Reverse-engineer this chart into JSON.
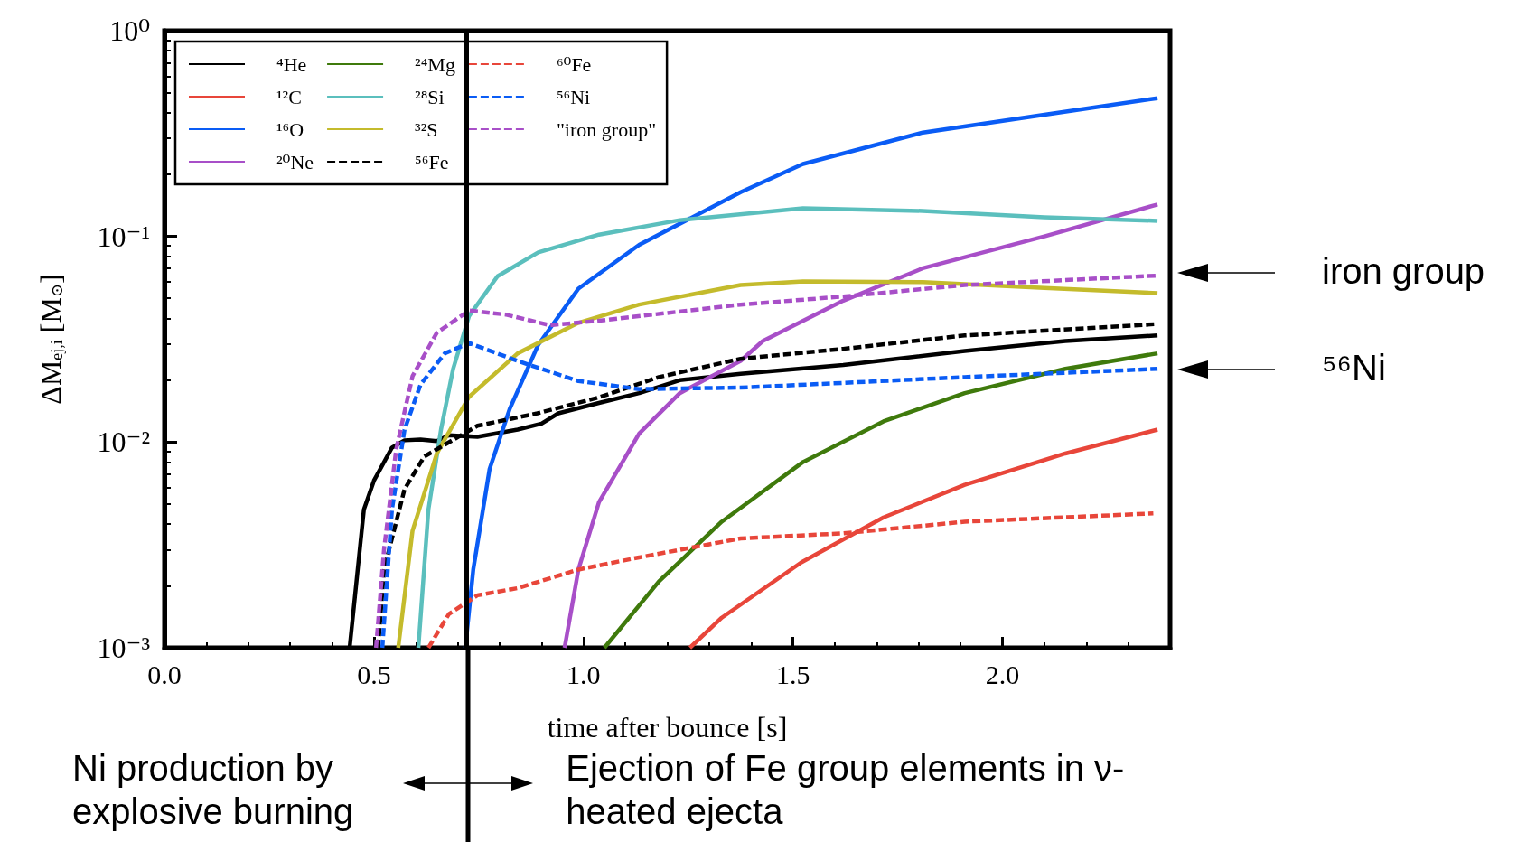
{
  "chart_data": {
    "type": "line",
    "xlabel": "time after bounce [s]",
    "ylabel": "ΔM$_{ej,i}$ [M$_{⊙}$]",
    "log": "y",
    "grid": false,
    "legend": "top left",
    "marker": "none",
    "xlim": [
      0,
      2.4
    ],
    "xticks": [
      {
        "value": 0,
        "label": "0.0"
      },
      {
        "value": 0.5,
        "label": "0.5"
      },
      {
        "value": 1,
        "label": "1.0"
      },
      {
        "value": 1.5,
        "label": "1.5"
      },
      {
        "value": 2,
        "label": "2.0"
      }
    ],
    "ylim": [
      0.001,
      1
    ],
    "yticks": [
      {
        "value": 0.001,
        "label": "10⁻³"
      },
      {
        "value": 0.01,
        "label": "10⁻²"
      },
      {
        "value": 0.1,
        "label": "10⁻¹"
      },
      {
        "value": 1,
        "label": "10⁰"
      }
    ],
    "series": [
      {
        "name": "⁴He",
        "color": "#000000",
        "line_style": "solid",
        "x": [
          0.442,
          0.476,
          0.5,
          0.543,
          0.573,
          0.611,
          0.65,
          0.679,
          0.747,
          0.843,
          0.9,
          0.94,
          1.037,
          1.133,
          1.23,
          1.375,
          1.62,
          1.91,
          2.15,
          2.37
        ],
        "values": [
          0.001,
          0.0047,
          0.0065,
          0.0094,
          0.0102,
          0.0103,
          0.0101,
          0.0108,
          0.0106,
          0.0115,
          0.0123,
          0.0138,
          0.0155,
          0.0173,
          0.02,
          0.0215,
          0.0237,
          0.0277,
          0.031,
          0.033
        ]
      },
      {
        "name": "¹²C",
        "color": "#e8463a",
        "line_style": "solid",
        "x": [
          1.254,
          1.33,
          1.52,
          1.716,
          1.91,
          2.15,
          2.37
        ],
        "values": [
          0.001,
          0.0014,
          0.0026,
          0.0043,
          0.0062,
          0.0088,
          0.0115
        ]
      },
      {
        "name": "¹⁶O",
        "color": "#0a5cf5",
        "line_style": "solid",
        "x": [
          0.718,
          0.737,
          0.776,
          0.824,
          0.892,
          0.988,
          1.133,
          1.375,
          1.524,
          1.81,
          2.1,
          2.37
        ],
        "values": [
          0.001,
          0.0024,
          0.0074,
          0.0145,
          0.0297,
          0.0557,
          0.091,
          0.164,
          0.225,
          0.32,
          0.39,
          0.47
        ]
      },
      {
        "name": "²⁰Ne",
        "color": "#a84fc8",
        "line_style": "solid",
        "x": [
          0.955,
          0.988,
          1.037,
          1.133,
          1.23,
          1.375,
          1.428,
          1.62,
          1.81,
          2.1,
          2.37
        ],
        "values": [
          0.001,
          0.0024,
          0.0051,
          0.011,
          0.0173,
          0.0248,
          0.031,
          0.0487,
          0.07,
          0.1,
          0.143
        ]
      },
      {
        "name": "²⁴Mg",
        "color": "#3f7a0c",
        "line_style": "solid",
        "x": [
          1.05,
          1.18,
          1.33,
          1.524,
          1.716,
          1.91,
          2.15,
          2.37
        ],
        "values": [
          0.001,
          0.0021,
          0.0041,
          0.008,
          0.0126,
          0.0173,
          0.0227,
          0.027
        ]
      },
      {
        "name": "²⁸Si",
        "color": "#5bbfbd",
        "line_style": "solid",
        "x": [
          0.606,
          0.63,
          0.66,
          0.689,
          0.727,
          0.795,
          0.892,
          1.037,
          1.23,
          1.524,
          1.81,
          2.1,
          2.37
        ],
        "values": [
          0.001,
          0.0047,
          0.0115,
          0.0227,
          0.041,
          0.064,
          0.0836,
          0.102,
          0.12,
          0.137,
          0.133,
          0.124,
          0.119
        ]
      },
      {
        "name": "³²S",
        "color": "#c4bb2c",
        "line_style": "solid",
        "x": [
          0.558,
          0.592,
          0.65,
          0.727,
          0.843,
          0.988,
          1.133,
          1.375,
          1.524,
          1.81,
          2.1,
          2.37
        ],
        "values": [
          0.001,
          0.0037,
          0.0088,
          0.0166,
          0.027,
          0.038,
          0.0466,
          0.058,
          0.0604,
          0.06,
          0.0562,
          0.053
        ]
      },
      {
        "name": "⁵⁶Fe",
        "color": "#000000",
        "line_style": "dashed",
        "x": [
          0.51,
          0.524,
          0.573,
          0.62,
          0.747,
          0.89,
          1.037,
          1.18,
          1.375,
          1.62,
          1.91,
          2.37
        ],
        "values": [
          0.001,
          0.0024,
          0.0059,
          0.0085,
          0.012,
          0.0138,
          0.0165,
          0.0207,
          0.0254,
          0.0284,
          0.033,
          0.0375
        ]
      },
      {
        "name": "⁶⁰Fe",
        "color": "#e8463a",
        "line_style": "dashed",
        "x": [
          0.63,
          0.679,
          0.747,
          0.843,
          0.988,
          1.133,
          1.375,
          1.62,
          1.91,
          2.36
        ],
        "values": [
          0.001,
          0.00146,
          0.0018,
          0.00195,
          0.0024,
          0.00275,
          0.0034,
          0.0036,
          0.0041,
          0.0045
        ]
      },
      {
        "name": "⁵⁶Ni",
        "color": "#0a5cf5",
        "line_style": "dashed",
        "x": [
          0.52,
          0.543,
          0.573,
          0.611,
          0.669,
          0.727,
          0.843,
          0.988,
          1.133,
          1.375,
          1.62,
          1.91,
          2.37
        ],
        "values": [
          0.001,
          0.0047,
          0.0115,
          0.019,
          0.027,
          0.0303,
          0.0248,
          0.0198,
          0.0181,
          0.0184,
          0.0194,
          0.0207,
          0.0227
        ]
      },
      {
        "name": "\"iron group\"",
        "color": "#a84fc8",
        "line_style": "dashed",
        "x": [
          0.505,
          0.524,
          0.553,
          0.592,
          0.65,
          0.727,
          0.814,
          0.92,
          1.037,
          1.375,
          1.62,
          1.91,
          2.37
        ],
        "values": [
          0.001,
          0.003,
          0.0092,
          0.0209,
          0.034,
          0.0436,
          0.0417,
          0.037,
          0.0389,
          0.0466,
          0.051,
          0.058,
          0.0645
        ]
      }
    ],
    "ref_lines": [
      {
        "axis": "x",
        "value": 0.725,
        "color": "#000000"
      }
    ],
    "annotations": [
      "iron group",
      "⁵⁶Ni",
      "Ni production by explosive burning",
      "Ejection of Fe group elements in ν-heated ejecta"
    ]
  }
}
